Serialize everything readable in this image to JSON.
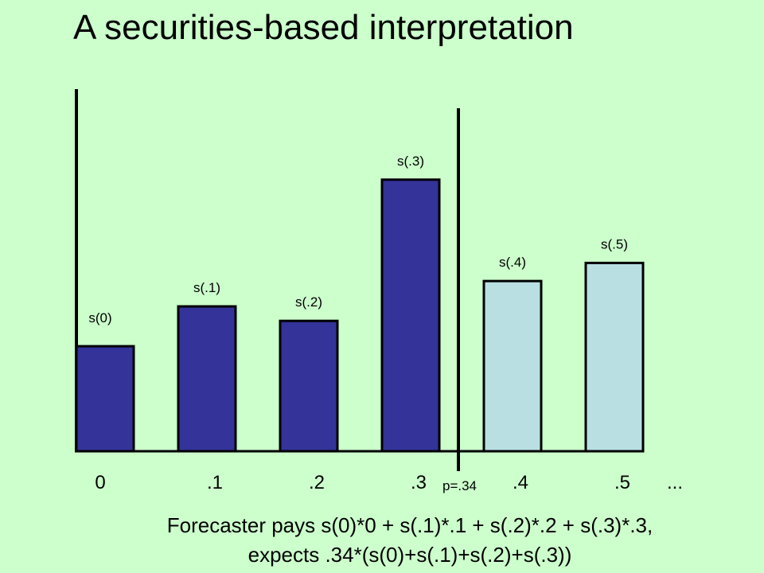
{
  "slide": {
    "title": "A securities-based interpretation",
    "caption_line1": "Forecaster pays s(0)*0 + s(.1)*.1 + s(.2)*.2 + s(.3)*.3,",
    "caption_line2": "expects .34*(s(0)+s(.1)+s(.2)+s(.3))"
  },
  "chart_data": {
    "type": "bar",
    "categories": [
      "0",
      ".1",
      ".2",
      ".3",
      ".4",
      ".5"
    ],
    "bar_labels": [
      "s(0)",
      "s(.1)",
      "s(.2)",
      "s(.3)",
      "s(.4)",
      "s(.5)"
    ],
    "values": [
      0.29,
      0.4,
      0.36,
      0.75,
      0.47,
      0.52
    ],
    "ylim": [
      0,
      1
    ],
    "extra_tick_label": "...",
    "threshold": {
      "x": 0.34,
      "label": "p=.34"
    },
    "colors": {
      "below_threshold": "#333399",
      "above_threshold": "#b9dfe3",
      "outline": "#000000"
    }
  }
}
